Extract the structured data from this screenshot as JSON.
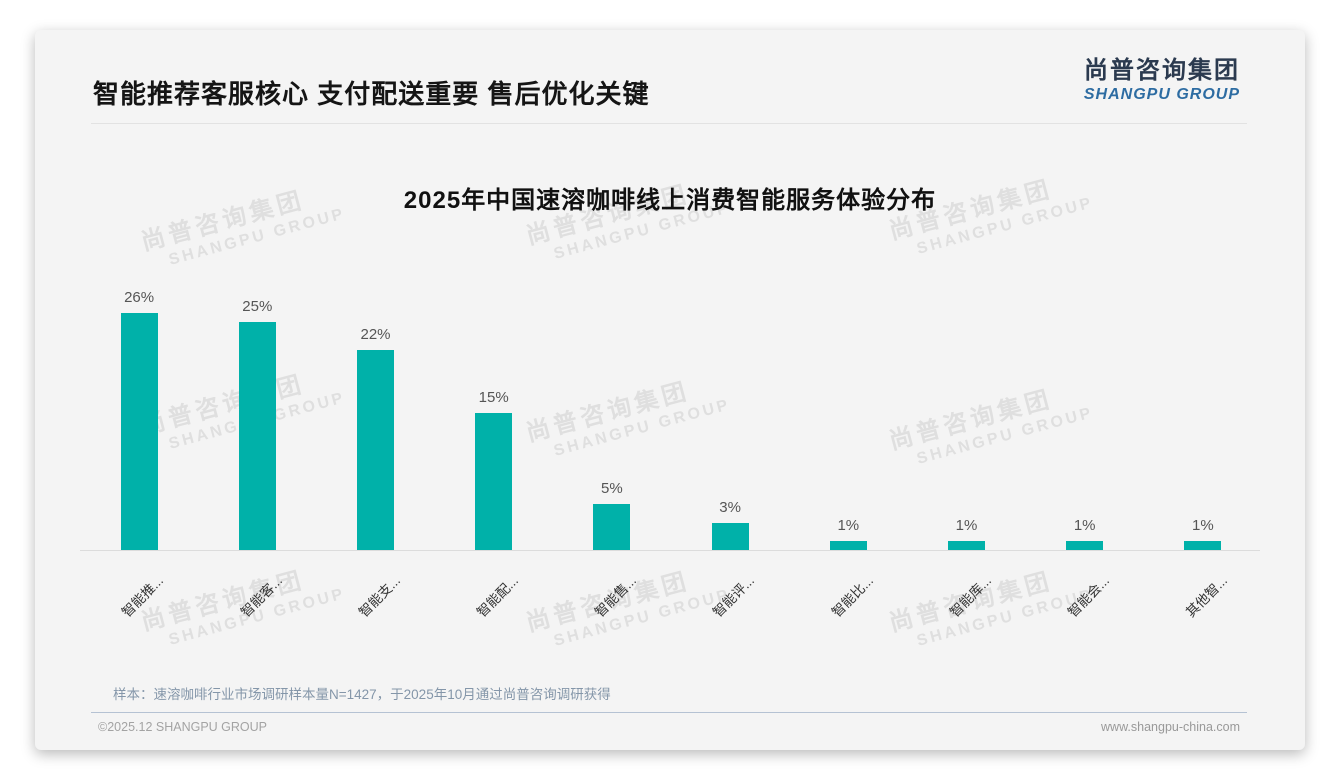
{
  "header": {
    "title": "智能推荐客服核心 支付配送重要 售后优化关键",
    "logo": {
      "cn": "尚普咨询集团",
      "en": "SHANGPU GROUP"
    }
  },
  "watermark": {
    "cn": "尚普咨询集团",
    "en": "SHANGPU GROUP"
  },
  "chart_data": {
    "type": "bar",
    "title": "2025年中国速溶咖啡线上消费智能服务体验分布",
    "categories": [
      "智能推...",
      "智能客...",
      "智能支...",
      "智能配...",
      "智能售...",
      "智能评...",
      "智能比...",
      "智能库...",
      "智能会...",
      "其他智..."
    ],
    "values": [
      26,
      25,
      22,
      15,
      5,
      3,
      1,
      1,
      1,
      1
    ],
    "value_labels": [
      "26%",
      "25%",
      "22%",
      "15%",
      "5%",
      "3%",
      "1%",
      "1%",
      "1%",
      "1%"
    ],
    "xlabel": "",
    "ylabel": "",
    "ylim": [
      0,
      28
    ],
    "grid": false,
    "legend": null,
    "label_rotation_deg": 45,
    "bar_color": "#00b1a9"
  },
  "footnote": "样本：速溶咖啡行业市场调研样本量N=1427，于2025年10月通过尚普咨询调研获得",
  "footer": {
    "copyright": "©2025.12 SHANGPU GROUP",
    "url": "www.shangpu-china.com"
  },
  "colors": {
    "bar": "#00b1a9",
    "logo_blue": "#2d6ca2",
    "logo_dark": "#2b3a4f",
    "note": "#8496a9",
    "card_bg": "#f4f4f4"
  }
}
